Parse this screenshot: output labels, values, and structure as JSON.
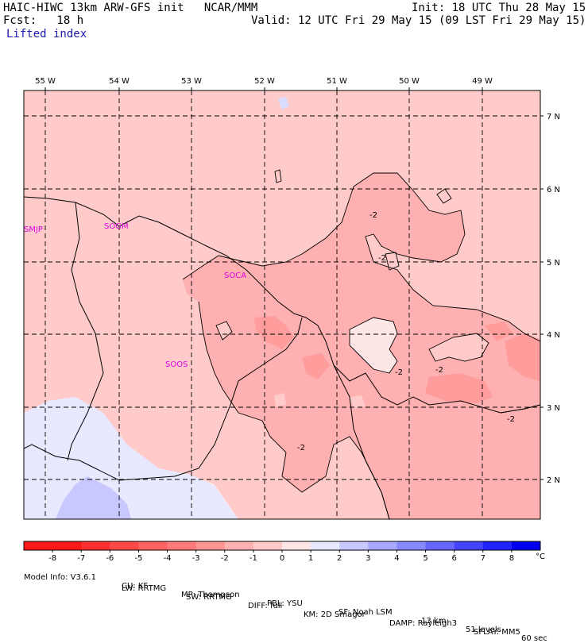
{
  "header": {
    "model": "HAIC-HIWC 13km ARW-GFS init   NCAR/MMM",
    "init": "Init: 18 UTC Thu 28 May 15",
    "fcst": "Fcst:   18 h",
    "valid": "Valid: 12 UTC Fri 29 May 15 (09 LST Fri 29 May 15)",
    "field": "Lifted index"
  },
  "map": {
    "longitude_labels": [
      "55 W",
      "54 W",
      "53 W",
      "52 W",
      "51 W",
      "50 W",
      "49 W"
    ],
    "latitude_labels": [
      "7 N",
      "6 N",
      "5 N",
      "4 N",
      "3 N",
      "2 N"
    ],
    "stations": [
      "SMJP",
      "SOGM",
      "SOCA",
      "SOOS"
    ],
    "contour_labels": [
      "-2",
      "-2",
      "-2",
      "-2",
      "-2",
      "-2"
    ]
  },
  "colorbar": {
    "ticks": [
      "-8",
      "-7",
      "-6",
      "-5",
      "-4",
      "-3",
      "-2",
      "-1",
      "0",
      "1",
      "2",
      "3",
      "4",
      "5",
      "6",
      "7",
      "8"
    ],
    "unit": "°C",
    "colors": [
      "#ff1a1a",
      "#ff3030",
      "#ff4848",
      "#ff6262",
      "#ff7b7b",
      "#ff9494",
      "#ffb0b0",
      "#ffcaca",
      "#ffe6e6",
      "#e8e8ff",
      "#c8c8ff",
      "#a8a8ff",
      "#8888ff",
      "#6666ff",
      "#4444ff",
      "#2222ff",
      "#0000ee"
    ]
  },
  "footer": {
    "line1": [
      "Model Info: V3.6.1",
      "CU: KF",
      "MP: Thompson",
      "PBL: YSU",
      "SF: Noah LSM",
      "13 km",
      "51 levels",
      "60 sec"
    ],
    "line2": [
      "LW: RRTMG",
      "SW: RRTMG",
      "DIFF: full",
      "KM: 2D Smagor",
      "DAMP: Rayleigh3",
      "SFLAY: MM5"
    ]
  }
}
